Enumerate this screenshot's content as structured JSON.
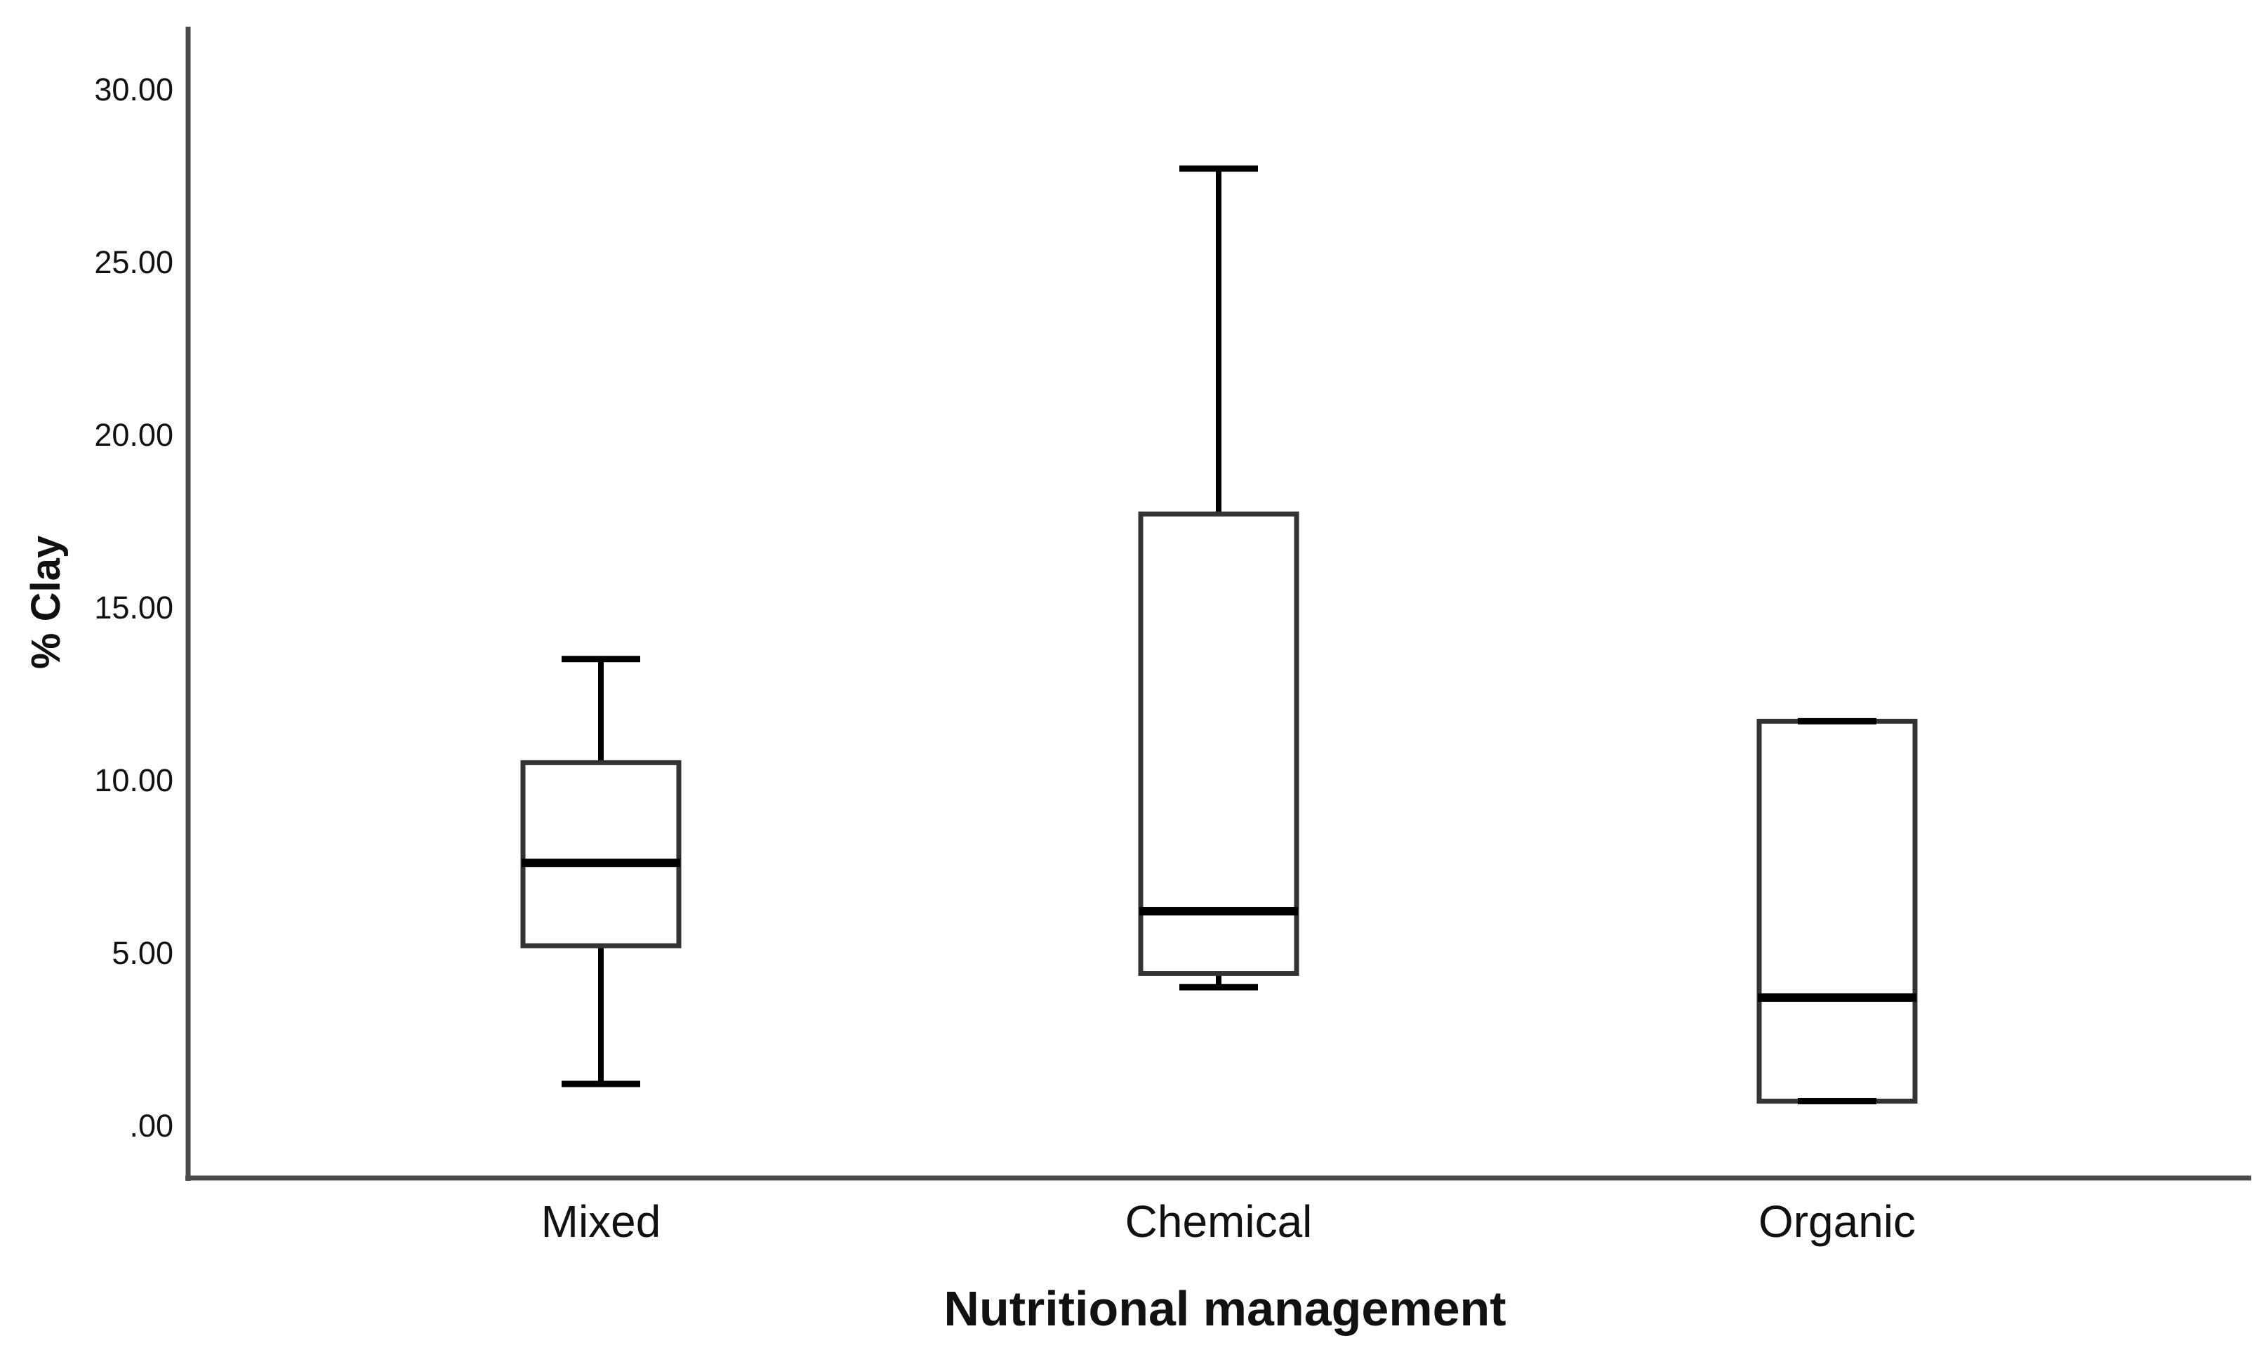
{
  "page": {
    "background": "#ffffff"
  },
  "chart_data": {
    "type": "boxplot",
    "title": "",
    "xlabel": "Nutritional management",
    "ylabel": "% Clay",
    "categories": [
      "Mixed",
      "Chemical",
      "Organic"
    ],
    "y_ticks": [
      ".00",
      "5.00",
      "10.00",
      "15.00",
      "20.00",
      "25.00",
      "30.00"
    ],
    "y_tick_values": [
      0,
      5,
      10,
      15,
      20,
      25,
      30
    ],
    "ylim": [
      -1.5,
      31.8
    ],
    "grid": false,
    "legend": false,
    "series": [
      {
        "name": "Mixed",
        "whisker_low": 1.2,
        "q1": 5.2,
        "median": 7.6,
        "q3": 10.5,
        "whisker_high": 13.5
      },
      {
        "name": "Chemical",
        "whisker_low": 4.0,
        "q1": 4.4,
        "median": 6.2,
        "q3": 17.7,
        "whisker_high": 27.7
      },
      {
        "name": "Organic",
        "whisker_low": 0.7,
        "q1": 0.7,
        "median": 3.7,
        "q3": 11.7,
        "whisker_high": 11.7
      }
    ],
    "colors": {
      "box_fill": "#ffffff",
      "box_stroke": "#333333",
      "median": "#000000",
      "whisker": "#000000",
      "axis": "#4a4a4a",
      "text": "#111111"
    }
  }
}
